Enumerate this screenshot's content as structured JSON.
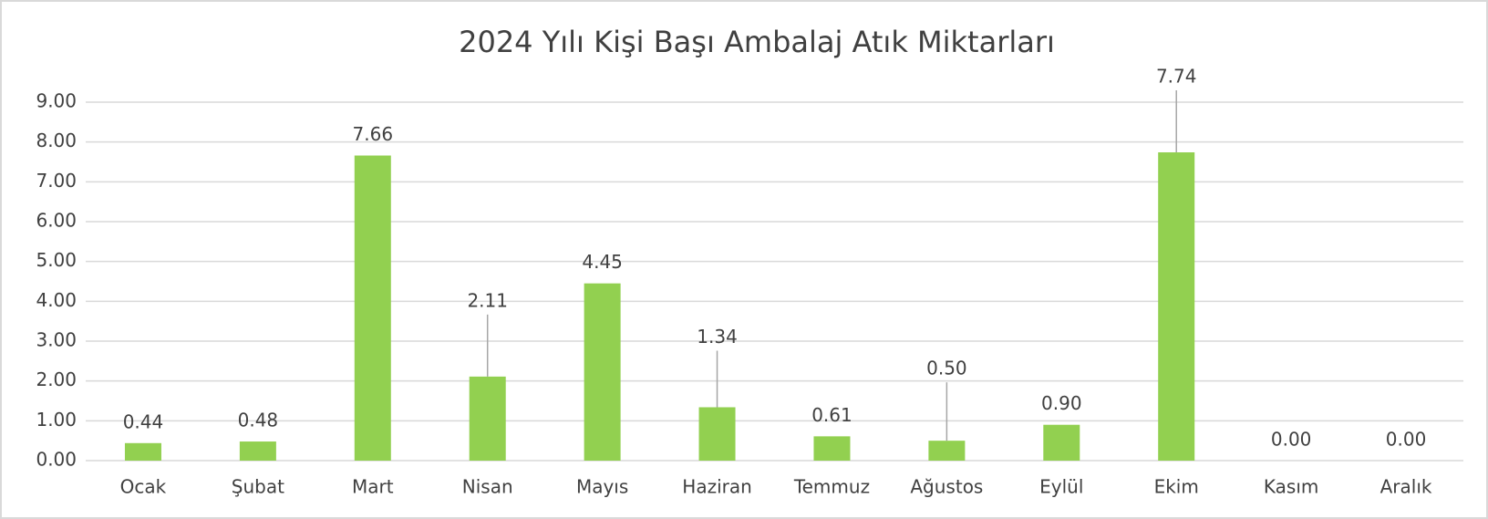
{
  "chart_data": {
    "type": "bar",
    "title": "2024 Yılı Kişi Başı Ambalaj Atık Miktarları",
    "categories": [
      "Ocak",
      "Şubat",
      "Mart",
      "Nisan",
      "Mayıs",
      "Haziran",
      "Temmuz",
      "Ağustos",
      "Eylül",
      "Ekim",
      "Kasım",
      "Aralık"
    ],
    "values": [
      0.44,
      0.48,
      7.66,
      2.11,
      4.45,
      1.34,
      0.61,
      0.5,
      0.9,
      7.74,
      0,
      0
    ],
    "value_labels": [
      "0.44",
      "0.48",
      "7.66",
      "2.11",
      "4.45",
      "1.34",
      "0.61",
      "0.50",
      "0.90",
      "7.74",
      "0.00",
      "0.00"
    ],
    "color": "#92d050",
    "ylim": [
      0,
      9
    ],
    "yticks": [
      {
        "value": 0,
        "label": "0.00"
      },
      {
        "value": 1,
        "label": "1.00"
      },
      {
        "value": 2,
        "label": "2.00"
      },
      {
        "value": 3,
        "label": "3.00"
      },
      {
        "value": 4,
        "label": "4.00"
      },
      {
        "value": 5,
        "label": "5.00"
      },
      {
        "value": 6,
        "label": "6.00"
      },
      {
        "value": 7,
        "label": "7.00"
      },
      {
        "value": 8,
        "label": "8.00"
      },
      {
        "value": 9,
        "label": "9.00"
      }
    ],
    "grid": true
  }
}
